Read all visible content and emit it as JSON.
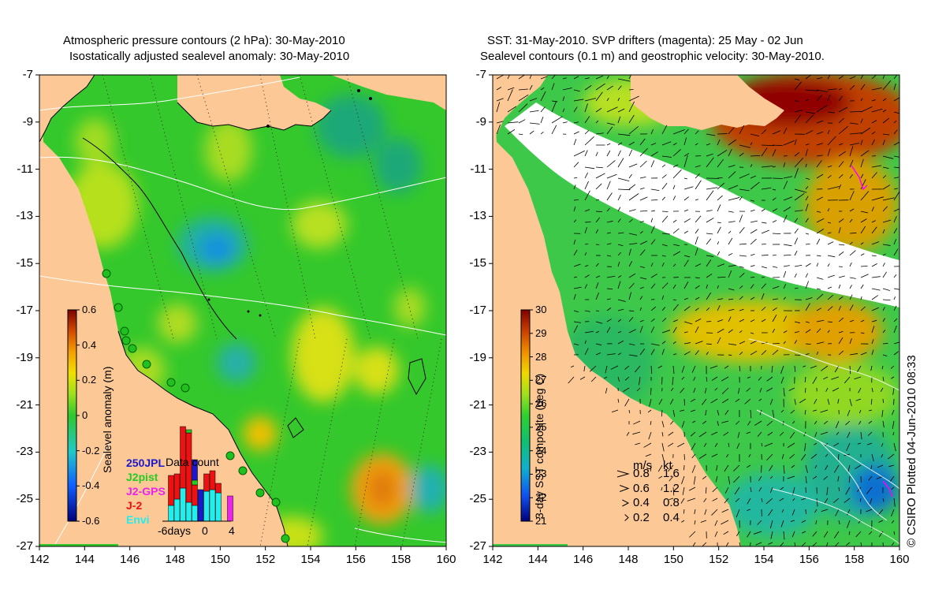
{
  "left_panel": {
    "title_line1": "Atmospheric pressure contours (2 hPa): 30-May-2010",
    "title_line2": "Isostatically adjusted sealevel anomaly: 30-May-2010",
    "x_ticks": [
      "142",
      "144",
      "146",
      "148",
      "150",
      "152",
      "154",
      "156",
      "158",
      "160"
    ],
    "y_ticks": [
      "-7",
      "-9",
      "-11",
      "-13",
      "-15",
      "-17",
      "-19",
      "-21",
      "-23",
      "-25",
      "-27"
    ],
    "colorbar": {
      "label": "Sealevel anomaly (m)",
      "ticks": [
        "0.6",
        "0.4",
        "0.2",
        "0",
        "-0.2",
        "-0.4",
        "-0.6"
      ],
      "range": [
        -0.6,
        0.6
      ]
    },
    "data_count": {
      "title": "Data count",
      "legend": [
        {
          "name": "250JPL",
          "color": "#1a1acc"
        },
        {
          "name": "J2pist",
          "color": "#22cc22"
        },
        {
          "name": "J2-GPS",
          "color": "#ee22ee"
        },
        {
          "name": "J-2",
          "color": "#ee1111"
        },
        {
          "name": "Envi",
          "color": "#22eeee"
        }
      ],
      "x_ticks": [
        "-6days",
        "0",
        "4"
      ]
    }
  },
  "right_panel": {
    "title_line1": "SST: 31-May-2010. SVP drifters (magenta): 25 May - 02 Jun",
    "title_line2": "Sealevel contours (0.1 m) and geostrophic velocity: 30-May-2010.",
    "x_ticks": [
      "142",
      "144",
      "146",
      "148",
      "150",
      "152",
      "154",
      "156",
      "158",
      "160"
    ],
    "y_ticks": [
      "-7",
      "-9",
      "-11",
      "-13",
      "-15",
      "-17",
      "-19",
      "-21",
      "-23",
      "-25",
      "-27"
    ],
    "colorbar": {
      "label": "3-day SST composite (deg C)",
      "ticks": [
        "30",
        "29",
        "28",
        "27",
        "26",
        "25",
        "24",
        "23",
        "22",
        "21"
      ],
      "range": [
        21,
        30
      ]
    },
    "velocity_legend": {
      "header_ms": "m/s",
      "header_kt": "kt",
      "rows": [
        {
          "ms": "0.8",
          "kt": "1.6"
        },
        {
          "ms": "0.6",
          "kt": "1.2"
        },
        {
          "ms": "0.4",
          "kt": "0.8"
        },
        {
          "ms": "0.2",
          "kt": "0.4"
        }
      ]
    },
    "credit": "© CSIRO Plotted 04-Jun-2010 08:33"
  },
  "colors": {
    "land": "#fcc896",
    "sea_level_base": "#3fd02a",
    "sst_warm": "#a01818",
    "sst_cool": "#1a8fd0"
  }
}
